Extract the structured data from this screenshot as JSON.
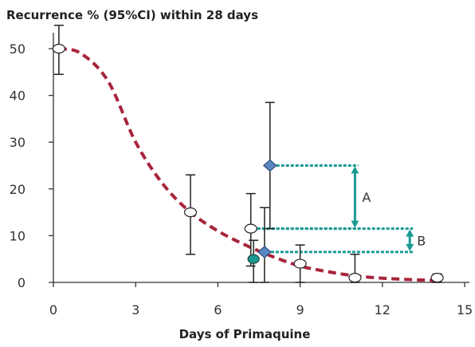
{
  "chart_data": {
    "type": "scatter",
    "title": "Recurrence % (95%CI) within 28 days",
    "xlabel": "Days of Primaquine",
    "ylabel": "",
    "xlim": [
      0,
      15
    ],
    "ylim": [
      0,
      50
    ],
    "x_ticks": [
      "0",
      "3",
      "6",
      "9",
      "12",
      "15"
    ],
    "y_ticks": [
      "0",
      "10",
      "20",
      "30",
      "40",
      "50"
    ],
    "grid": false,
    "points": [
      {
        "x": 0.2,
        "y": 50,
        "ci_low": 44.5,
        "ci_high": 55,
        "marker": "open-circle"
      },
      {
        "x": 5.0,
        "y": 15,
        "ci_low": 6,
        "ci_high": 23,
        "marker": "open-circle"
      },
      {
        "x": 7.2,
        "y": 11.5,
        "ci_low": 3.5,
        "ci_high": 19,
        "marker": "open-circle"
      },
      {
        "x": 7.3,
        "y": 5,
        "ci_low": 0,
        "ci_high": 9,
        "marker": "filled-circle"
      },
      {
        "x": 7.7,
        "y": 6.5,
        "ci_low": 0,
        "ci_high": 16,
        "marker": "diamond"
      },
      {
        "x": 7.9,
        "y": 25,
        "ci_low": 11.5,
        "ci_high": 38.5,
        "marker": "diamond"
      },
      {
        "x": 9.0,
        "y": 4,
        "ci_low": 0,
        "ci_high": 8,
        "marker": "open-circle"
      },
      {
        "x": 11.0,
        "y": 1,
        "ci_low": 0,
        "ci_high": 6,
        "marker": "open-circle"
      },
      {
        "x": 14.0,
        "y": 1,
        "ci_low": 0,
        "ci_high": 1.8,
        "marker": "open-circle"
      }
    ],
    "fitted_curve": {
      "style": "dashed",
      "x": [
        0.2,
        1,
        2,
        3,
        4,
        5,
        6,
        7,
        8,
        9,
        10,
        11,
        12,
        13,
        14
      ],
      "y": [
        50,
        49,
        43,
        30,
        21,
        15,
        11,
        8,
        5.5,
        3.5,
        2.3,
        1.4,
        0.9,
        0.6,
        0.4
      ]
    },
    "annotations": [
      {
        "label": "A",
        "x": 11,
        "from_y": 25,
        "to_y": 11.5,
        "source_x": [
          7.9,
          7.2
        ]
      },
      {
        "label": "B",
        "x": 13,
        "from_y": 11.5,
        "to_y": 6.5,
        "source_x": [
          7.2,
          7.7
        ]
      }
    ],
    "colors": {
      "curve": "#a8243c",
      "annotation": "#1a9a92",
      "diamond_fill": "#5b87c0",
      "diamond_stroke": "#2d4f7f",
      "filled_circle": "#1a9a92",
      "error_bar": "#222222"
    }
  }
}
